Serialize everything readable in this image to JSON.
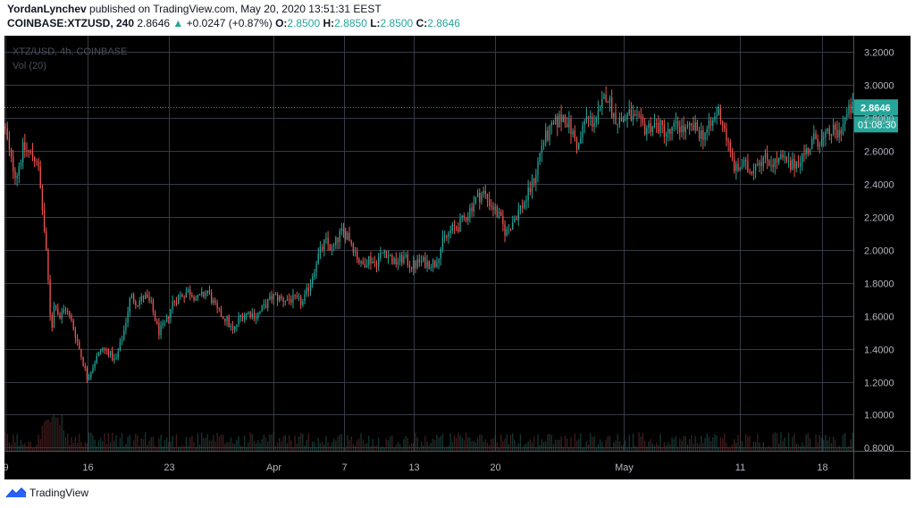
{
  "header": {
    "author": "YordanLynchev",
    "published_text": "published on TradingView.com, May 20, 2020 13:51:31 EEST",
    "symbol_line": "COINBASE:XTZUSD, 240",
    "last": "2.8646",
    "change_arrow": "▲",
    "change": "+0.0247 (+0.87%)",
    "o_label": "O:",
    "o_value": "2.8500",
    "h_label": "H:",
    "h_value": "2.8850",
    "l_label": "L:",
    "l_value": "2.8500",
    "c_label": "C:",
    "c_value": "2.8646"
  },
  "legend": {
    "symbol": "XTZ/USD, 4h, COINBASE",
    "volume": "Vol (20)"
  },
  "footer": {
    "brand": "TradingView",
    "logo_icon": "tradingview-logo-icon"
  },
  "colors": {
    "up": "#26a69a",
    "down": "#ef5350",
    "background": "#000000",
    "grid": "#363a45",
    "axis_text": "#b2b5be",
    "price_line": "#26a69a"
  },
  "chart_data": {
    "type": "candlestick",
    "symbol": "XTZUSD",
    "exchange": "COINBASE",
    "interval": "4h",
    "grid": true,
    "ylim": [
      0.78,
      3.3
    ],
    "y_ticks": [
      "0.8000",
      "1.0000",
      "1.2000",
      "1.4000",
      "1.6000",
      "1.8000",
      "2.0000",
      "2.2000",
      "2.4000",
      "2.6000",
      "2.8000",
      "3.0000",
      "3.2000"
    ],
    "x_ticks": [
      {
        "label": "9",
        "day": 9
      },
      {
        "label": "16",
        "day": 16
      },
      {
        "label": "23",
        "day": 23
      },
      {
        "label": "Apr",
        "day": 32
      },
      {
        "label": "7",
        "day": 38
      },
      {
        "label": "13",
        "day": 44
      },
      {
        "label": "20",
        "day": 51
      },
      {
        "label": "May",
        "day": 62
      },
      {
        "label": "11",
        "day": 72
      },
      {
        "label": "18",
        "day": 79
      }
    ],
    "x_range_days": [
      8.9,
      81.7
    ],
    "current_price": 2.8646,
    "current_price_label": "2.8646",
    "countdown_label": "01:08:30",
    "anchors": [
      [
        9.0,
        2.75
      ],
      [
        9.5,
        2.55
      ],
      [
        10.0,
        2.45
      ],
      [
        10.6,
        2.62
      ],
      [
        11.2,
        2.58
      ],
      [
        11.8,
        2.55
      ],
      [
        12.3,
        2.2
      ],
      [
        12.7,
        1.85
      ],
      [
        13.0,
        1.5
      ],
      [
        13.3,
        1.7
      ],
      [
        13.7,
        1.58
      ],
      [
        14.2,
        1.65
      ],
      [
        14.8,
        1.55
      ],
      [
        15.4,
        1.4
      ],
      [
        16.1,
        1.22
      ],
      [
        16.7,
        1.32
      ],
      [
        17.3,
        1.4
      ],
      [
        17.9,
        1.38
      ],
      [
        18.5,
        1.32
      ],
      [
        19.2,
        1.5
      ],
      [
        19.8,
        1.72
      ],
      [
        20.4,
        1.68
      ],
      [
        21.0,
        1.72
      ],
      [
        21.6,
        1.66
      ],
      [
        22.2,
        1.5
      ],
      [
        22.8,
        1.55
      ],
      [
        23.4,
        1.68
      ],
      [
        24.0,
        1.72
      ],
      [
        24.8,
        1.75
      ],
      [
        25.6,
        1.7
      ],
      [
        26.4,
        1.75
      ],
      [
        27.2,
        1.63
      ],
      [
        28.0,
        1.58
      ],
      [
        28.6,
        1.5
      ],
      [
        29.2,
        1.6
      ],
      [
        29.9,
        1.62
      ],
      [
        30.6,
        1.6
      ],
      [
        31.2,
        1.65
      ],
      [
        32.0,
        1.72
      ],
      [
        32.8,
        1.7
      ],
      [
        33.6,
        1.7
      ],
      [
        34.6,
        1.68
      ],
      [
        35.2,
        1.8
      ],
      [
        35.8,
        1.95
      ],
      [
        36.5,
        2.05
      ],
      [
        37.1,
        2.0
      ],
      [
        37.8,
        2.1
      ],
      [
        38.4,
        2.1
      ],
      [
        39.0,
        2.0
      ],
      [
        39.6,
        1.9
      ],
      [
        40.2,
        1.95
      ],
      [
        40.8,
        1.92
      ],
      [
        41.6,
        2.0
      ],
      [
        42.4,
        1.92
      ],
      [
        43.2,
        1.95
      ],
      [
        44.0,
        1.9
      ],
      [
        44.6,
        1.93
      ],
      [
        45.3,
        1.92
      ],
      [
        45.9,
        1.92
      ],
      [
        46.6,
        2.05
      ],
      [
        47.3,
        2.12
      ],
      [
        48.0,
        2.15
      ],
      [
        48.7,
        2.22
      ],
      [
        49.3,
        2.3
      ],
      [
        50.0,
        2.35
      ],
      [
        50.7,
        2.28
      ],
      [
        51.4,
        2.2
      ],
      [
        52.0,
        2.1
      ],
      [
        52.6,
        2.18
      ],
      [
        53.2,
        2.25
      ],
      [
        53.8,
        2.32
      ],
      [
        54.5,
        2.45
      ],
      [
        55.1,
        2.65
      ],
      [
        55.8,
        2.72
      ],
      [
        56.4,
        2.78
      ],
      [
        57.0,
        2.82
      ],
      [
        57.6,
        2.72
      ],
      [
        58.2,
        2.62
      ],
      [
        58.8,
        2.8
      ],
      [
        59.4,
        2.78
      ],
      [
        60.0,
        2.82
      ],
      [
        60.6,
        2.96
      ],
      [
        61.2,
        2.82
      ],
      [
        61.8,
        2.78
      ],
      [
        62.5,
        2.82
      ],
      [
        63.2,
        2.78
      ],
      [
        63.9,
        2.74
      ],
      [
        64.6,
        2.76
      ],
      [
        65.3,
        2.74
      ],
      [
        66.0,
        2.7
      ],
      [
        66.7,
        2.76
      ],
      [
        67.4,
        2.72
      ],
      [
        68.1,
        2.74
      ],
      [
        68.8,
        2.7
      ],
      [
        69.5,
        2.74
      ],
      [
        70.2,
        2.85
      ],
      [
        70.7,
        2.75
      ],
      [
        71.2,
        2.58
      ],
      [
        71.7,
        2.48
      ],
      [
        72.3,
        2.52
      ],
      [
        72.9,
        2.48
      ],
      [
        73.6,
        2.55
      ],
      [
        74.3,
        2.55
      ],
      [
        75.0,
        2.53
      ],
      [
        75.7,
        2.55
      ],
      [
        76.4,
        2.5
      ],
      [
        77.1,
        2.55
      ],
      [
        77.8,
        2.6
      ],
      [
        78.5,
        2.68
      ],
      [
        79.2,
        2.66
      ],
      [
        79.9,
        2.72
      ],
      [
        80.5,
        2.7
      ],
      [
        81.1,
        2.8
      ],
      [
        81.6,
        2.86
      ]
    ]
  }
}
